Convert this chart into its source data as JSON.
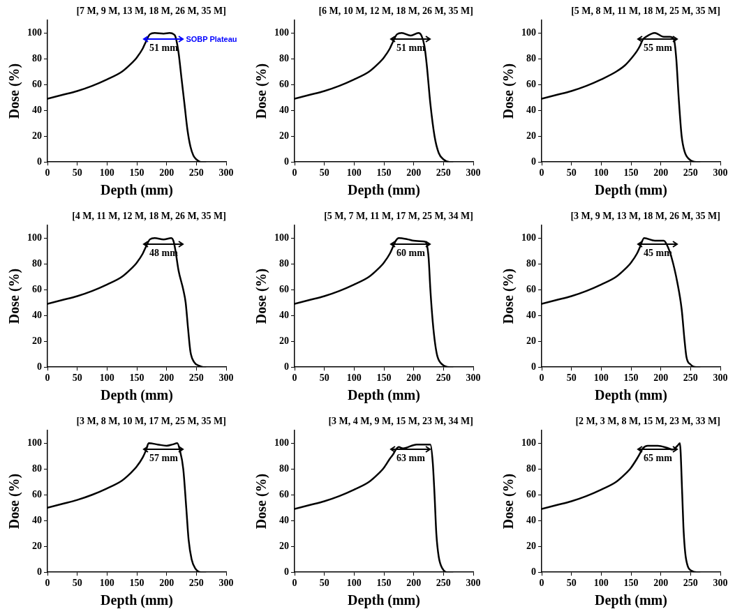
{
  "chart_data": [
    {
      "type": "line",
      "title": "[7 M, 9 M, 13 M, 18 M, 26 M, 35 M]",
      "xlabel": "Depth (mm)",
      "ylabel": "Dose (%)",
      "xlim": [
        0,
        300
      ],
      "ylim": [
        0,
        110
      ],
      "xticks": [
        0,
        50,
        100,
        150,
        200,
        250,
        300
      ],
      "yticks": [
        0,
        20,
        40,
        60,
        80,
        100
      ],
      "color": "#000000",
      "x": [
        0,
        25,
        50,
        75,
        100,
        125,
        140,
        150,
        160,
        165,
        172,
        180,
        195,
        205,
        212,
        215,
        220,
        225,
        230,
        235,
        240,
        245,
        250,
        258,
        265
      ],
      "values": [
        49,
        52,
        55,
        59,
        64,
        70,
        76,
        81,
        88,
        93,
        99,
        100,
        99.5,
        100,
        99,
        97,
        85,
        65,
        45,
        25,
        12,
        5,
        2,
        0,
        0
      ],
      "annotations": [
        "51 mm",
        "SOBP Plateau"
      ]
    },
    {
      "type": "line",
      "title": "[6 M, 10 M, 12 M, 18 M, 26 M, 35 M]",
      "xlabel": "Depth (mm)",
      "ylabel": "Dose (%)",
      "xlim": [
        0,
        300
      ],
      "ylim": [
        0,
        110
      ],
      "xticks": [
        0,
        50,
        100,
        150,
        200,
        250,
        300
      ],
      "yticks": [
        0,
        20,
        40,
        60,
        80,
        100
      ],
      "color": "#000000",
      "x": [
        0,
        25,
        50,
        75,
        100,
        125,
        140,
        150,
        160,
        165,
        172,
        180,
        195,
        208,
        213,
        218,
        222,
        228,
        235,
        242,
        250,
        260,
        265
      ],
      "values": [
        49,
        52,
        55,
        59,
        64,
        70,
        76,
        81,
        88,
        93,
        99,
        100,
        98,
        100,
        98,
        90,
        75,
        45,
        20,
        7,
        2,
        0,
        0
      ],
      "annotations": [
        "51 mm"
      ]
    },
    {
      "type": "line",
      "title": "[5 M, 8 M, 11 M, 18 M, 25 M, 35 M]",
      "xlabel": "Depth (mm)",
      "ylabel": "Dose (%)",
      "xlim": [
        0,
        300
      ],
      "ylim": [
        0,
        110
      ],
      "xticks": [
        0,
        50,
        100,
        150,
        200,
        250,
        300
      ],
      "yticks": [
        0,
        20,
        40,
        60,
        80,
        100
      ],
      "color": "#000000",
      "x": [
        0,
        25,
        50,
        75,
        100,
        125,
        140,
        150,
        160,
        165,
        170,
        175,
        190,
        205,
        215,
        222,
        226,
        230,
        235,
        240,
        248,
        260,
        265
      ],
      "values": [
        49,
        52,
        55,
        59,
        64,
        70,
        75,
        80,
        86,
        90,
        95,
        97,
        100,
        97,
        97,
        95,
        80,
        50,
        20,
        8,
        2,
        0,
        0
      ],
      "annotations": [
        "55 mm"
      ]
    },
    {
      "type": "line",
      "title": "[4 M, 11 M, 12 M, 18 M, 26 M, 35 M]",
      "xlabel": "Depth (mm)",
      "ylabel": "Dose (%)",
      "xlim": [
        0,
        300
      ],
      "ylim": [
        0,
        110
      ],
      "xticks": [
        0,
        50,
        100,
        150,
        200,
        250,
        300
      ],
      "yticks": [
        0,
        20,
        40,
        60,
        80,
        100
      ],
      "color": "#000000",
      "x": [
        0,
        25,
        50,
        75,
        100,
        125,
        140,
        150,
        160,
        165,
        172,
        180,
        195,
        208,
        212,
        215,
        220,
        228,
        232,
        236,
        240,
        246,
        255,
        262,
        265
      ],
      "values": [
        49,
        52,
        55,
        59,
        64,
        70,
        76,
        81,
        88,
        93,
        99,
        100,
        99,
        100,
        97,
        90,
        75,
        60,
        50,
        30,
        12,
        4,
        1,
        0,
        0
      ],
      "annotations": [
        "48 mm"
      ]
    },
    {
      "type": "line",
      "title": "[5 M, 7 M, 11 M, 17 M, 25 M, 34 M]",
      "xlabel": "Depth (mm)",
      "ylabel": "Dose (%)",
      "xlim": [
        0,
        300
      ],
      "ylim": [
        0,
        110
      ],
      "xticks": [
        0,
        50,
        100,
        150,
        200,
        250,
        300
      ],
      "yticks": [
        0,
        20,
        40,
        60,
        80,
        100
      ],
      "color": "#000000",
      "x": [
        0,
        25,
        50,
        75,
        100,
        125,
        140,
        150,
        160,
        165,
        170,
        175,
        190,
        200,
        215,
        220,
        225,
        228,
        232,
        236,
        240,
        248,
        260,
        265
      ],
      "values": [
        49,
        52,
        55,
        59,
        64,
        70,
        76,
        81,
        88,
        93,
        98,
        100,
        99,
        98,
        97.5,
        97,
        85,
        60,
        35,
        18,
        8,
        2,
        0,
        0
      ],
      "annotations": [
        "60 mm"
      ]
    },
    {
      "type": "line",
      "title": "[3 M, 9 M, 13 M, 18 M, 26 M, 35 M]",
      "xlabel": "Depth (mm)",
      "ylabel": "Dose (%)",
      "xlim": [
        0,
        300
      ],
      "ylim": [
        0,
        110
      ],
      "xticks": [
        0,
        50,
        100,
        150,
        200,
        250,
        300
      ],
      "yticks": [
        0,
        20,
        40,
        60,
        80,
        100
      ],
      "color": "#000000",
      "x": [
        0,
        25,
        50,
        75,
        100,
        125,
        140,
        150,
        160,
        165,
        172,
        190,
        205,
        210,
        218,
        228,
        235,
        240,
        243,
        250,
        260,
        265
      ],
      "values": [
        49,
        52,
        55,
        59,
        64,
        70,
        76,
        81,
        88,
        93,
        100,
        98,
        98,
        95,
        85,
        65,
        45,
        20,
        8,
        2,
        0,
        0
      ],
      "annotations": [
        "45 mm"
      ]
    },
    {
      "type": "line",
      "title": "[3 M, 8 M, 10 M, 17 M, 25 M, 35 M]",
      "xlabel": "Depth (mm)",
      "ylabel": "Dose (%)",
      "xlim": [
        0,
        300
      ],
      "ylim": [
        0,
        110
      ],
      "xticks": [
        0,
        50,
        100,
        150,
        200,
        250,
        300
      ],
      "yticks": [
        0,
        20,
        40,
        60,
        80,
        100
      ],
      "color": "#000000",
      "x": [
        0,
        25,
        50,
        75,
        100,
        125,
        140,
        150,
        160,
        165,
        170,
        185,
        200,
        210,
        218,
        222,
        228,
        233,
        237,
        242,
        248,
        258,
        265
      ],
      "values": [
        50,
        53,
        56,
        60,
        65,
        71,
        77,
        82,
        89,
        94,
        100,
        99,
        98,
        99,
        100,
        95,
        80,
        50,
        25,
        10,
        3,
        0,
        0
      ],
      "annotations": [
        "57 mm"
      ]
    },
    {
      "type": "line",
      "title": "[3 M, 4 M, 9 M, 15 M, 23 M, 34 M]",
      "xlabel": "Depth (mm)",
      "ylabel": "Dose (%)",
      "xlim": [
        0,
        300
      ],
      "ylim": [
        0,
        110
      ],
      "xticks": [
        0,
        50,
        100,
        150,
        200,
        250,
        300
      ],
      "yticks": [
        0,
        20,
        40,
        60,
        80,
        100
      ],
      "color": "#000000",
      "x": [
        0,
        25,
        50,
        75,
        100,
        125,
        140,
        150,
        160,
        165,
        170,
        175,
        182,
        205,
        228,
        232,
        235,
        238,
        242,
        248,
        258,
        265
      ],
      "values": [
        49,
        52,
        55,
        59,
        64,
        70,
        76,
        81,
        88,
        91,
        95,
        97,
        96,
        99,
        99,
        85,
        60,
        30,
        12,
        3,
        0,
        0
      ],
      "annotations": [
        "63 mm"
      ]
    },
    {
      "type": "line",
      "title": "[2 M, 3 M, 8 M, 15 M, 23 M, 33 M]",
      "xlabel": "Depth (mm)",
      "ylabel": "Dose (%)",
      "xlim": [
        0,
        300
      ],
      "ylim": [
        0,
        110
      ],
      "xticks": [
        0,
        50,
        100,
        150,
        200,
        250,
        300
      ],
      "yticks": [
        0,
        20,
        40,
        60,
        80,
        100
      ],
      "color": "#000000",
      "x": [
        0,
        25,
        50,
        75,
        100,
        125,
        140,
        150,
        160,
        165,
        170,
        178,
        195,
        210,
        220,
        228,
        232,
        236,
        238,
        241,
        245,
        252,
        260,
        265
      ],
      "values": [
        49,
        52,
        55,
        59,
        64,
        70,
        76,
        81,
        88,
        92,
        96,
        98,
        98,
        96.5,
        95,
        98,
        100,
        60,
        35,
        15,
        5,
        1,
        0,
        0
      ],
      "annotations": [
        "65 mm"
      ]
    }
  ]
}
